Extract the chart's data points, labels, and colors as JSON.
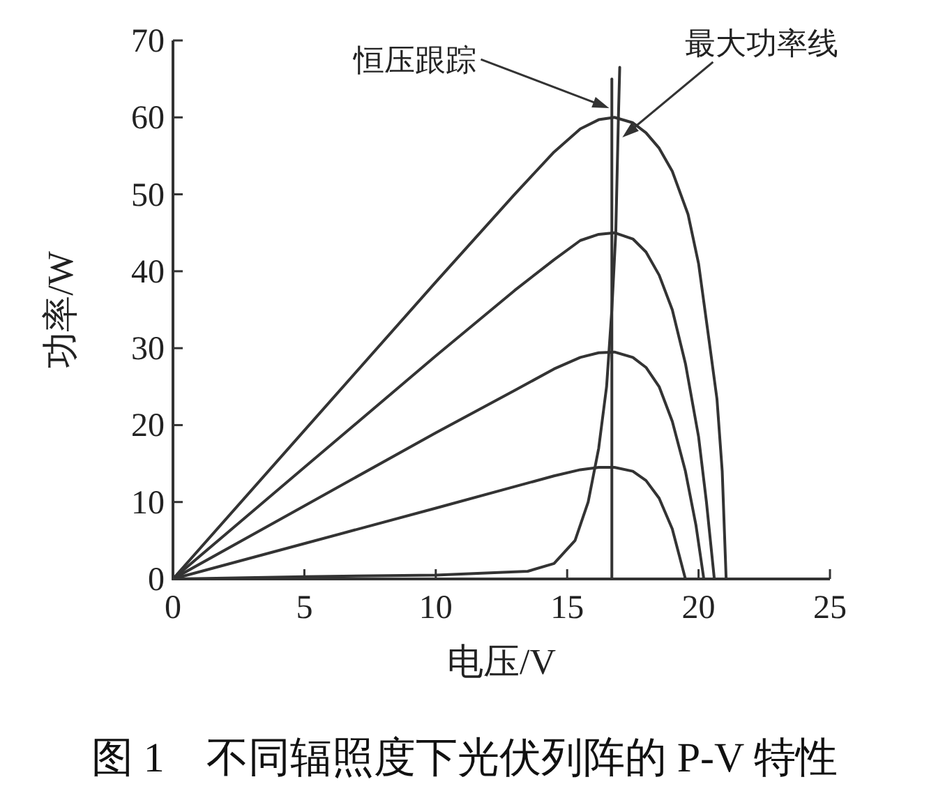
{
  "chart_data": {
    "type": "line",
    "title": "图 1　不同辐照度下光伏列阵的 P-V 特性",
    "xlabel": "电压/V",
    "ylabel": "功率/W",
    "xlim": [
      0,
      25
    ],
    "xticks": [
      0,
      5,
      10,
      15,
      20,
      25
    ],
    "ylim": [
      0,
      70
    ],
    "yticks": [
      0,
      10,
      20,
      30,
      40,
      50,
      60,
      70
    ],
    "series": [
      {
        "color": "#333333",
        "x": [
          0,
          5,
          10,
          13,
          14.5,
          15.5,
          16.2,
          16.8,
          17.5,
          18,
          18.5,
          19,
          19.6,
          20,
          20.4,
          20.7,
          20.9,
          21.05
        ],
        "values": [
          0,
          19.3,
          38.6,
          50,
          55.5,
          58.5,
          59.7,
          60,
          59.3,
          58,
          56,
          53,
          47.4,
          41,
          31,
          23.4,
          14,
          0
        ]
      },
      {
        "color": "#333333",
        "x": [
          0,
          5,
          10,
          13,
          14.5,
          15.5,
          16.2,
          16.8,
          17.5,
          18,
          18.5,
          19,
          19.5,
          20,
          20.3,
          20.6
        ],
        "values": [
          0,
          14.5,
          29,
          37.5,
          41.5,
          44,
          44.8,
          45,
          44.2,
          42.5,
          39.5,
          35,
          28,
          18.5,
          10,
          0
        ]
      },
      {
        "color": "#333333",
        "x": [
          0,
          5,
          10,
          13,
          14.5,
          15.5,
          16.2,
          16.8,
          17.5,
          18,
          18.5,
          19,
          19.5,
          19.9,
          20.2
        ],
        "values": [
          0,
          9.5,
          19,
          24.5,
          27.3,
          28.8,
          29.4,
          29.5,
          28.8,
          27.5,
          25,
          20.5,
          14,
          7,
          0
        ]
      },
      {
        "color": "#333333",
        "x": [
          0,
          5,
          10,
          13,
          14.5,
          15.5,
          16.2,
          16.8,
          17.5,
          18,
          18.5,
          19,
          19.5
        ],
        "values": [
          0,
          4.6,
          9.2,
          12,
          13.4,
          14.2,
          14.5,
          14.5,
          14,
          12.8,
          10.5,
          6.5,
          0
        ]
      },
      {
        "color": "#333333",
        "x": [
          0,
          5,
          10,
          13.5,
          14.5,
          15.3,
          15.8,
          16.2,
          16.5,
          16.7,
          16.85,
          16.95,
          17.0
        ],
        "values": [
          0,
          0.3,
          0.5,
          1,
          2,
          5,
          10,
          17,
          25,
          35,
          45,
          60,
          66.5
        ]
      },
      {
        "color": "#333333",
        "x": [
          16.7,
          16.7
        ],
        "values": [
          0,
          65
        ]
      }
    ],
    "annotations": [
      {
        "text": "恒压跟踪",
        "x": 16.6,
        "y": 61.2
      },
      {
        "text": "最大功率线",
        "x": 17.1,
        "y": 57.4
      }
    ]
  }
}
